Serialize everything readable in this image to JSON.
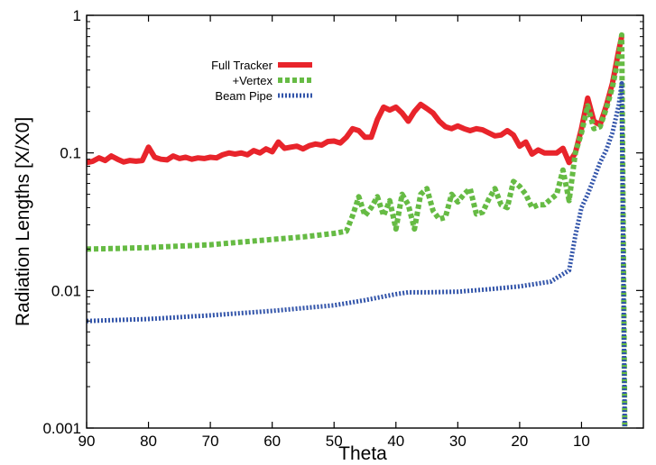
{
  "chart_data": {
    "type": "line",
    "title": "",
    "xlabel": "Theta",
    "ylabel": "Radiation Lengths [X/X0]",
    "x_reversed": true,
    "xlim": [
      90,
      0
    ],
    "ylim": [
      0.001,
      1
    ],
    "yscale": "log",
    "x_ticks": [
      90,
      80,
      70,
      60,
      50,
      40,
      30,
      20,
      10
    ],
    "x_tick_labels": [
      "90",
      "80",
      "70",
      "60",
      "50",
      "40",
      "30",
      "20",
      "10"
    ],
    "y_ticks": [
      0.001,
      0.01,
      0.1,
      1
    ],
    "y_tick_labels": [
      "0.001",
      "0.01",
      "0.1",
      "1"
    ],
    "grid": false,
    "legend_position": "top-left",
    "series": [
      {
        "name": "Full Tracker",
        "color": "#e8242b",
        "style": "solid",
        "points": [
          [
            90,
            0.085
          ],
          [
            89,
            0.087
          ],
          [
            88,
            0.092
          ],
          [
            87,
            0.088
          ],
          [
            86,
            0.095
          ],
          [
            85,
            0.09
          ],
          [
            84,
            0.086
          ],
          [
            83,
            0.088
          ],
          [
            82,
            0.087
          ],
          [
            81,
            0.088
          ],
          [
            80,
            0.11
          ],
          [
            79,
            0.093
          ],
          [
            78,
            0.09
          ],
          [
            77,
            0.089
          ],
          [
            76,
            0.095
          ],
          [
            75,
            0.091
          ],
          [
            74,
            0.093
          ],
          [
            73,
            0.09
          ],
          [
            72,
            0.092
          ],
          [
            71,
            0.091
          ],
          [
            70,
            0.093
          ],
          [
            69,
            0.092
          ],
          [
            68,
            0.097
          ],
          [
            67,
            0.1
          ],
          [
            66,
            0.098
          ],
          [
            65,
            0.1
          ],
          [
            64,
            0.097
          ],
          [
            63,
            0.104
          ],
          [
            62,
            0.1
          ],
          [
            61,
            0.107
          ],
          [
            60,
            0.102
          ],
          [
            59,
            0.12
          ],
          [
            58,
            0.108
          ],
          [
            57,
            0.11
          ],
          [
            56,
            0.112
          ],
          [
            55,
            0.107
          ],
          [
            54,
            0.113
          ],
          [
            53,
            0.116
          ],
          [
            52,
            0.114
          ],
          [
            51,
            0.121
          ],
          [
            50,
            0.122
          ],
          [
            49,
            0.118
          ],
          [
            48,
            0.13
          ],
          [
            47,
            0.15
          ],
          [
            46,
            0.145
          ],
          [
            45,
            0.13
          ],
          [
            44,
            0.13
          ],
          [
            43,
            0.175
          ],
          [
            42,
            0.215
          ],
          [
            41,
            0.205
          ],
          [
            40,
            0.215
          ],
          [
            39,
            0.195
          ],
          [
            38,
            0.17
          ],
          [
            37,
            0.2
          ],
          [
            36,
            0.225
          ],
          [
            35,
            0.21
          ],
          [
            34,
            0.195
          ],
          [
            33,
            0.17
          ],
          [
            32,
            0.155
          ],
          [
            31,
            0.15
          ],
          [
            30,
            0.157
          ],
          [
            29,
            0.15
          ],
          [
            28,
            0.145
          ],
          [
            27,
            0.15
          ],
          [
            26,
            0.147
          ],
          [
            25,
            0.14
          ],
          [
            24,
            0.133
          ],
          [
            23,
            0.135
          ],
          [
            22,
            0.145
          ],
          [
            21,
            0.135
          ],
          [
            20,
            0.112
          ],
          [
            19,
            0.12
          ],
          [
            18,
            0.098
          ],
          [
            17,
            0.105
          ],
          [
            16,
            0.1
          ],
          [
            15,
            0.1
          ],
          [
            14,
            0.1
          ],
          [
            13,
            0.108
          ],
          [
            12,
            0.085
          ],
          [
            11,
            0.1
          ],
          [
            10,
            0.15
          ],
          [
            9,
            0.25
          ],
          [
            8,
            0.17
          ],
          [
            7,
            0.16
          ],
          [
            6,
            0.22
          ],
          [
            5,
            0.32
          ],
          [
            4,
            0.55
          ],
          [
            3.5,
            0.7
          ]
        ]
      },
      {
        "name": "+Vertex",
        "color": "#66bb44",
        "style": "dashed",
        "points": [
          [
            90,
            0.02
          ],
          [
            85,
            0.0202
          ],
          [
            80,
            0.0205
          ],
          [
            75,
            0.021
          ],
          [
            70,
            0.0215
          ],
          [
            65,
            0.0225
          ],
          [
            60,
            0.0235
          ],
          [
            55,
            0.0245
          ],
          [
            50,
            0.026
          ],
          [
            48,
            0.027
          ],
          [
            47,
            0.035
          ],
          [
            46,
            0.048
          ],
          [
            45,
            0.035
          ],
          [
            44,
            0.04
          ],
          [
            43,
            0.048
          ],
          [
            42,
            0.035
          ],
          [
            41,
            0.045
          ],
          [
            40,
            0.028
          ],
          [
            39,
            0.05
          ],
          [
            38,
            0.042
          ],
          [
            37,
            0.028
          ],
          [
            36,
            0.05
          ],
          [
            35,
            0.055
          ],
          [
            34,
            0.038
          ],
          [
            33,
            0.033
          ],
          [
            32,
            0.034
          ],
          [
            31,
            0.05
          ],
          [
            30,
            0.044
          ],
          [
            29,
            0.05
          ],
          [
            28,
            0.055
          ],
          [
            27,
            0.036
          ],
          [
            26,
            0.037
          ],
          [
            25,
            0.046
          ],
          [
            24,
            0.055
          ],
          [
            23,
            0.042
          ],
          [
            22,
            0.04
          ],
          [
            21,
            0.062
          ],
          [
            20,
            0.057
          ],
          [
            19,
            0.05
          ],
          [
            18,
            0.04
          ],
          [
            17,
            0.042
          ],
          [
            16,
            0.042
          ],
          [
            15,
            0.046
          ],
          [
            14,
            0.05
          ],
          [
            13,
            0.075
          ],
          [
            12,
            0.045
          ],
          [
            11,
            0.1
          ],
          [
            10,
            0.14
          ],
          [
            9,
            0.22
          ],
          [
            8,
            0.15
          ],
          [
            7,
            0.155
          ],
          [
            6,
            0.21
          ],
          [
            5,
            0.3
          ],
          [
            4,
            0.5
          ],
          [
            3.5,
            0.72
          ],
          [
            3,
            0.001
          ]
        ]
      },
      {
        "name": "Beam Pipe",
        "color": "#3355aa",
        "style": "dotted",
        "points": [
          [
            90,
            0.006
          ],
          [
            80,
            0.0062
          ],
          [
            70,
            0.0066
          ],
          [
            60,
            0.0071
          ],
          [
            50,
            0.0078
          ],
          [
            45,
            0.0085
          ],
          [
            40,
            0.0094
          ],
          [
            38,
            0.0097
          ],
          [
            35,
            0.0097
          ],
          [
            30,
            0.0098
          ],
          [
            25,
            0.0102
          ],
          [
            20,
            0.0107
          ],
          [
            15,
            0.0116
          ],
          [
            12,
            0.014
          ],
          [
            11,
            0.025
          ],
          [
            10,
            0.04
          ],
          [
            9,
            0.05
          ],
          [
            8,
            0.065
          ],
          [
            7,
            0.085
          ],
          [
            6,
            0.105
          ],
          [
            5,
            0.14
          ],
          [
            4,
            0.22
          ],
          [
            3.5,
            0.32
          ],
          [
            3,
            0.001
          ]
        ]
      }
    ]
  }
}
